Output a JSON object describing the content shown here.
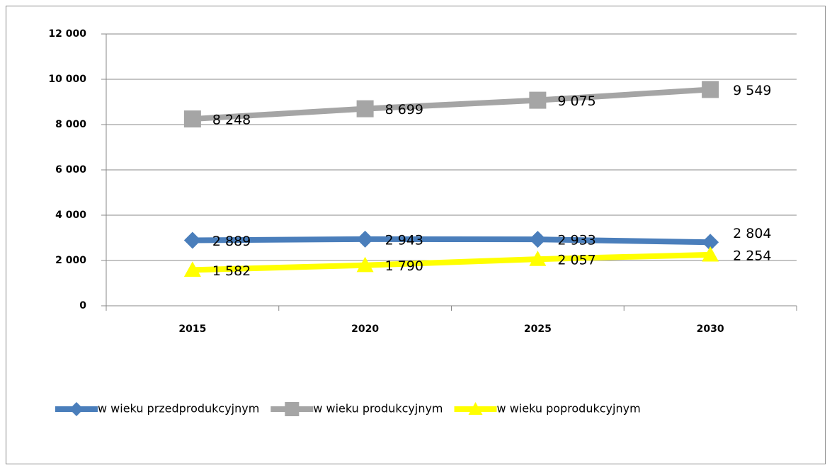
{
  "chart_data": {
    "type": "line",
    "categories": [
      "2015",
      "2020",
      "2025",
      "2030"
    ],
    "series": [
      {
        "name": "w wieku przedprodukcyjnym",
        "color": "#4a7ebb",
        "marker": "diamond",
        "values": [
          2889,
          2943,
          2933,
          2804
        ],
        "value_labels": [
          "2 889",
          "2 943",
          "2 933",
          "2 804"
        ]
      },
      {
        "name": "w wieku produkcyjnym",
        "color": "#a5a5a5",
        "marker": "square",
        "values": [
          8248,
          8699,
          9075,
          9549
        ],
        "value_labels": [
          "8 248",
          "8 699",
          "9 075",
          "9 549"
        ]
      },
      {
        "name": "w wieku poprodukcyjnym",
        "color": "#ffff00",
        "marker": "triangle",
        "values": [
          1582,
          1790,
          2057,
          2254
        ],
        "value_labels": [
          "1 582",
          "1 790",
          "2 057",
          "2 254"
        ]
      }
    ],
    "ylim": [
      0,
      12000
    ],
    "yticks": [
      0,
      {
        "value": 2000,
        "label": "2 000"
      },
      {
        "value": 4000,
        "label": "4 000"
      },
      {
        "value": 6000,
        "label": "6 000"
      },
      {
        "value": 8000,
        "label": "8 000"
      },
      {
        "value": 10000,
        "label": "10 000"
      },
      {
        "value": 12000,
        "label": "12 000"
      }
    ],
    "grid": true,
    "legend": "bottom"
  }
}
